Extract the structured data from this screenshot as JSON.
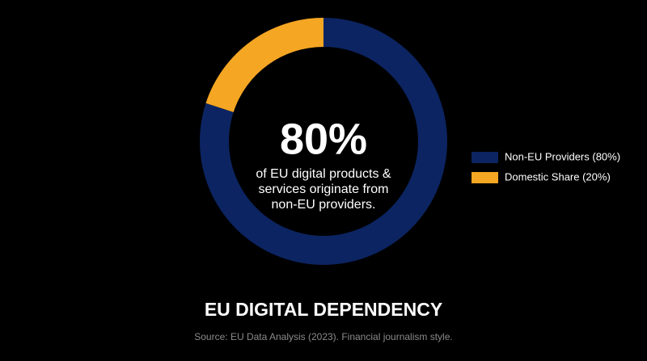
{
  "chart_data": {
    "type": "pie",
    "donut": true,
    "title": "EU DIGITAL DEPENDENCY",
    "source": "Source: EU Data Analysis (2023). Financial journalism style.",
    "annotations": [
      "80%",
      "of EU digital products &",
      "services originate from",
      "non-EU providers."
    ],
    "categories": [
      "Non-EU Providers (80%)",
      "Domestic Share (20%)"
    ],
    "values": [
      80,
      20
    ],
    "colors": [
      "#0c2461",
      "#f5a623"
    ],
    "legend": "right"
  }
}
